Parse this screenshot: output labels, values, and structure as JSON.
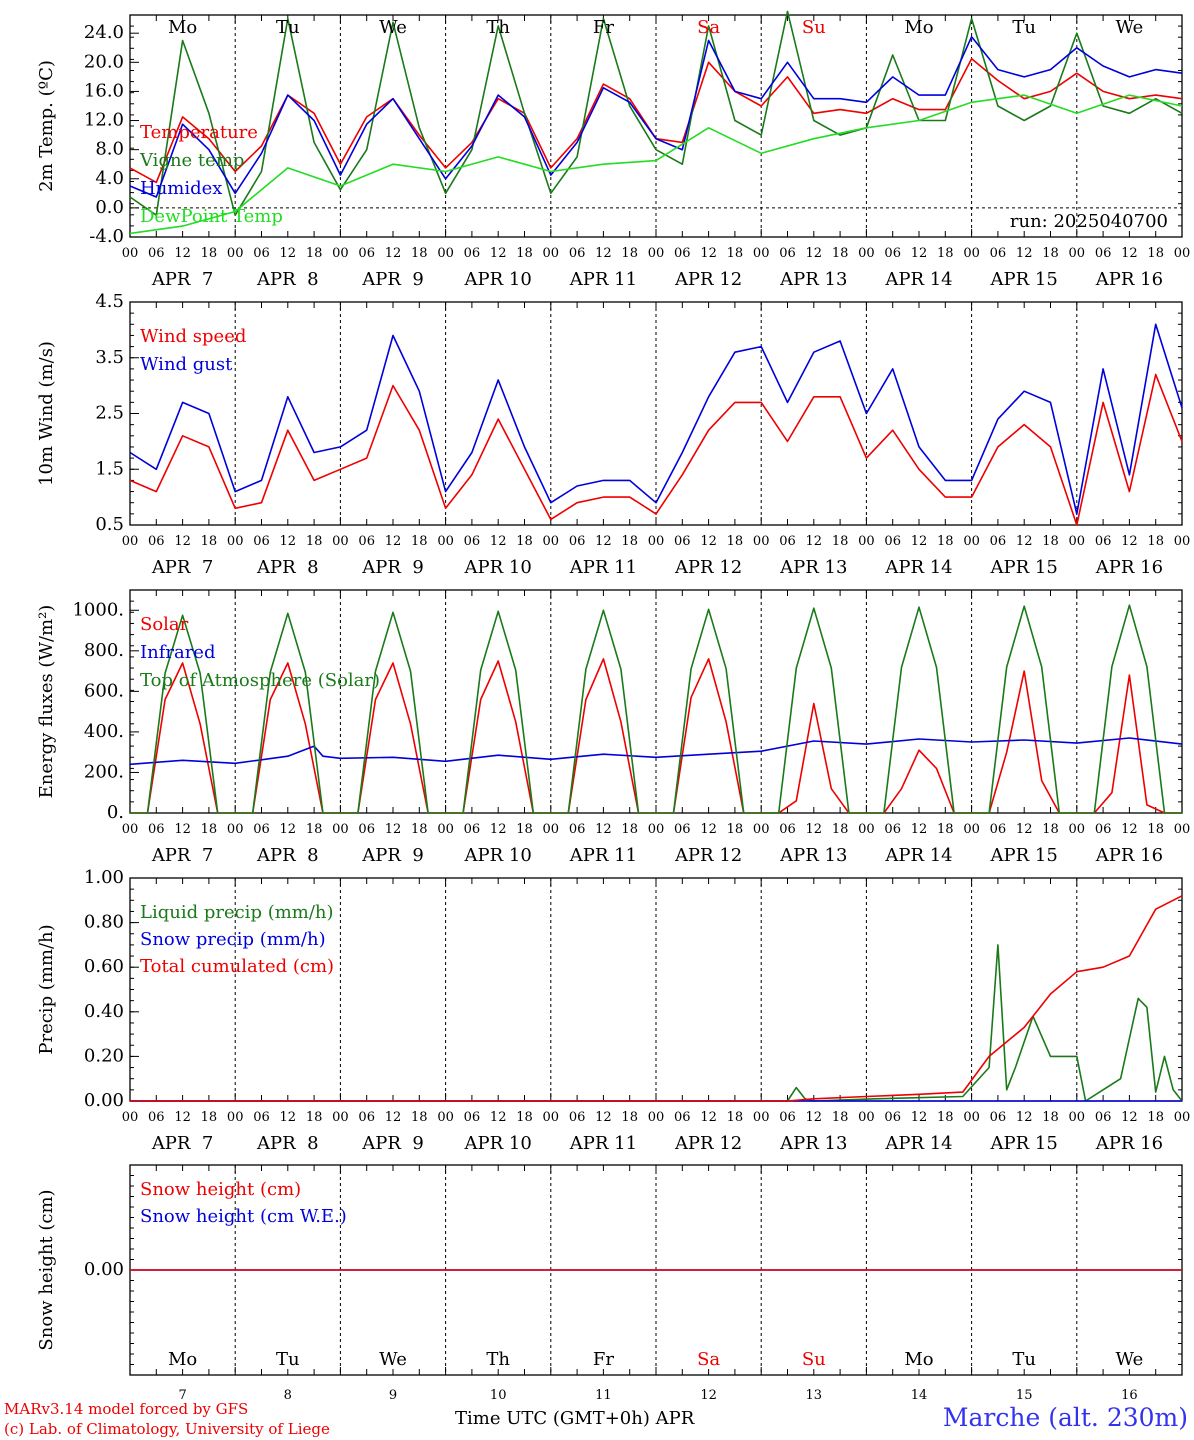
{
  "footer": {
    "model_line": "MARv3.14 model forced by GFS",
    "lab_line": "(c) Lab. of Climatology, University of Liege",
    "time_label": "Time UTC (GMT+0h) APR",
    "station": "Marche (alt. 230m)"
  },
  "colors": {
    "red": "#ee0000",
    "blue": "#0000dd",
    "dark_green": "#1a7a1a",
    "light_green": "#22dd22",
    "weekend": "#ee0000"
  },
  "days": [
    {
      "abbr": "Mo",
      "date": "APR  7",
      "num": "7",
      "weekend": false
    },
    {
      "abbr": "Tu",
      "date": "APR  8",
      "num": "8",
      "weekend": false
    },
    {
      "abbr": "We",
      "date": "APR  9",
      "num": "9",
      "weekend": false
    },
    {
      "abbr": "Th",
      "date": "APR 10",
      "num": "10",
      "weekend": false
    },
    {
      "abbr": "Fr",
      "date": "APR 11",
      "num": "11",
      "weekend": false
    },
    {
      "abbr": "Sa",
      "date": "APR 12",
      "num": "12",
      "weekend": true
    },
    {
      "abbr": "Su",
      "date": "APR 13",
      "num": "13",
      "weekend": true
    },
    {
      "abbr": "Mo",
      "date": "APR 14",
      "num": "14",
      "weekend": false
    },
    {
      "abbr": "Tu",
      "date": "APR 15",
      "num": "15",
      "weekend": false
    },
    {
      "abbr": "We",
      "date": "APR 16",
      "num": "16",
      "weekend": false
    }
  ],
  "hour_ticks": [
    "00",
    "06",
    "12",
    "18"
  ],
  "chart_data": [
    {
      "id": "temperature",
      "type": "line",
      "ylabel": "2m Temp. (ºC)",
      "ylim": [
        -4,
        26.5
      ],
      "yticks": [
        "-4.0",
        "0.0",
        "4.0",
        "8.0",
        "12.0",
        "16.0",
        "20.0",
        "24.0"
      ],
      "ytick_values": [
        -4,
        0,
        4,
        8,
        12,
        16,
        20,
        24
      ],
      "zero_line": 0,
      "annotation": "run: 2025040700",
      "x_unit": "hours since APR 7 00 UTC",
      "series": [
        {
          "name": "Temperature",
          "color": "red",
          "x": [
            0,
            6,
            12,
            18,
            24,
            30,
            36,
            42,
            48,
            54,
            60,
            66,
            72,
            78,
            84,
            90,
            96,
            102,
            108,
            114,
            120,
            126,
            132,
            138,
            144,
            150,
            156,
            162,
            168,
            174,
            180,
            186,
            192,
            198,
            204,
            210,
            216,
            222,
            228,
            234,
            240
          ],
          "y": [
            5.5,
            3.5,
            12.5,
            9.5,
            5,
            8.5,
            15.5,
            13,
            6,
            12.5,
            15,
            10,
            5.5,
            9,
            15,
            13,
            5.5,
            9.5,
            17,
            15,
            9.5,
            9,
            20,
            16,
            14,
            18,
            13,
            13.5,
            13,
            15,
            13.5,
            13.5,
            20.5,
            17.5,
            15,
            16,
            18.5,
            16,
            15,
            15.5,
            15
          ]
        },
        {
          "name": "Vigne temp",
          "color": "dark_green",
          "x": [
            0,
            6,
            12,
            18,
            24,
            30,
            36,
            42,
            48,
            54,
            60,
            66,
            72,
            78,
            84,
            90,
            96,
            102,
            108,
            114,
            120,
            126,
            132,
            138,
            144,
            150,
            156,
            162,
            168,
            174,
            180,
            186,
            192,
            198,
            204,
            210,
            216,
            222,
            228,
            234,
            240
          ],
          "y": [
            1.5,
            -1,
            23,
            13,
            -1,
            5,
            26,
            9,
            2.5,
            8,
            25.5,
            11,
            2,
            8,
            25,
            13,
            2,
            7,
            26,
            14,
            8,
            6,
            25,
            12,
            10,
            27,
            12,
            10,
            11,
            21,
            12,
            12,
            26,
            14,
            12,
            14,
            24,
            14,
            13,
            15,
            13
          ]
        },
        {
          "name": "Humidex",
          "color": "blue",
          "x": [
            0,
            6,
            12,
            18,
            24,
            30,
            36,
            42,
            48,
            54,
            60,
            66,
            72,
            78,
            84,
            90,
            96,
            102,
            108,
            114,
            120,
            126,
            132,
            138,
            144,
            150,
            156,
            162,
            168,
            174,
            180,
            186,
            192,
            198,
            204,
            210,
            216,
            222,
            228,
            234,
            240
          ],
          "y": [
            3,
            1.5,
            11.5,
            8,
            2,
            7.5,
            15.5,
            12,
            4.5,
            11.5,
            15,
            9.5,
            4,
            8.5,
            15.5,
            12.5,
            4.5,
            9,
            16.5,
            14.5,
            9.5,
            8,
            23,
            16,
            15,
            20,
            15,
            15,
            14.5,
            18,
            15.5,
            15.5,
            23.5,
            19,
            18,
            19,
            22,
            19.5,
            18,
            19,
            18.5
          ]
        },
        {
          "name": "DewPoint Temp",
          "color": "light_green",
          "x": [
            0,
            12,
            24,
            36,
            48,
            60,
            72,
            84,
            96,
            108,
            120,
            132,
            144,
            156,
            168,
            180,
            192,
            204,
            216,
            228,
            240
          ],
          "y": [
            -3.5,
            -2.5,
            -0.5,
            5.5,
            3,
            6,
            5,
            7,
            5,
            6,
            6.5,
            11,
            7.5,
            9.5,
            11,
            12,
            14.5,
            15.5,
            13,
            15.5,
            14
          ]
        }
      ]
    },
    {
      "id": "wind",
      "type": "line",
      "ylabel": "10m Wind (m/s)",
      "ylim": [
        0.5,
        4.5
      ],
      "yticks": [
        "0.5",
        "1.5",
        "2.5",
        "3.5",
        "4.5"
      ],
      "ytick_values": [
        0.5,
        1.5,
        2.5,
        3.5,
        4.5
      ],
      "x_unit": "hours since APR 7 00 UTC",
      "series": [
        {
          "name": "Wind speed",
          "color": "red",
          "x": [
            0,
            6,
            12,
            18,
            24,
            30,
            36,
            42,
            48,
            54,
            60,
            66,
            72,
            78,
            84,
            90,
            96,
            102,
            108,
            114,
            120,
            126,
            132,
            138,
            144,
            150,
            156,
            162,
            168,
            174,
            180,
            186,
            192,
            198,
            204,
            210,
            216,
            222,
            228,
            234,
            240
          ],
          "y": [
            1.3,
            1.1,
            2.1,
            1.9,
            0.8,
            0.9,
            2.2,
            1.3,
            1.5,
            1.7,
            3,
            2.2,
            0.8,
            1.4,
            2.4,
            1.5,
            0.6,
            0.9,
            1,
            1,
            0.7,
            1.4,
            2.2,
            2.7,
            2.7,
            2,
            2.8,
            2.8,
            1.7,
            2.2,
            1.5,
            1,
            1,
            1.9,
            2.3,
            1.9,
            0.5,
            2.7,
            1.1,
            3.2,
            2
          ]
        },
        {
          "name": "Wind gust",
          "color": "blue",
          "x": [
            0,
            6,
            12,
            18,
            24,
            30,
            36,
            42,
            48,
            54,
            60,
            66,
            72,
            78,
            84,
            90,
            96,
            102,
            108,
            114,
            120,
            126,
            132,
            138,
            144,
            150,
            156,
            162,
            168,
            174,
            180,
            186,
            192,
            198,
            204,
            210,
            216,
            222,
            228,
            234,
            240
          ],
          "y": [
            1.8,
            1.5,
            2.7,
            2.5,
            1.1,
            1.3,
            2.8,
            1.8,
            1.9,
            2.2,
            3.9,
            2.9,
            1.1,
            1.8,
            3.1,
            1.9,
            0.9,
            1.2,
            1.3,
            1.3,
            0.9,
            1.8,
            2.8,
            3.6,
            3.7,
            2.7,
            3.6,
            3.8,
            2.5,
            3.3,
            1.9,
            1.3,
            1.3,
            2.4,
            2.9,
            2.7,
            0.7,
            3.3,
            1.4,
            4.1,
            2.6
          ]
        }
      ]
    },
    {
      "id": "energy",
      "type": "line",
      "ylabel": "Energy fluxes (W/m²)",
      "ylim": [
        0,
        1100
      ],
      "yticks": [
        "0.",
        "200.",
        "400.",
        "600.",
        "800.",
        "1000."
      ],
      "ytick_values": [
        0,
        200,
        400,
        600,
        800,
        1000
      ],
      "x_unit": "hours since APR 7 00 UTC",
      "series": [
        {
          "name": "Solar",
          "color": "red",
          "x": [
            0,
            4,
            8,
            12,
            16,
            20,
            24,
            28,
            32,
            36,
            40,
            44,
            48,
            52,
            56,
            60,
            64,
            68,
            72,
            76,
            80,
            84,
            88,
            92,
            96,
            100,
            104,
            108,
            112,
            116,
            120,
            124,
            128,
            132,
            136,
            140,
            144,
            148,
            152,
            156,
            160,
            164,
            168,
            172,
            176,
            180,
            184,
            188,
            192,
            196,
            200,
            204,
            208,
            212,
            216,
            220,
            224,
            228,
            232,
            236,
            240
          ],
          "y": [
            0,
            0,
            560,
            740,
            440,
            0,
            0,
            0,
            560,
            740,
            440,
            0,
            0,
            0,
            560,
            740,
            440,
            0,
            0,
            0,
            560,
            750,
            450,
            0,
            0,
            0,
            560,
            760,
            450,
            0,
            0,
            0,
            570,
            760,
            450,
            0,
            0,
            0,
            60,
            540,
            120,
            0,
            0,
            0,
            120,
            310,
            220,
            0,
            0,
            0,
            300,
            700,
            160,
            0,
            0,
            0,
            100,
            680,
            40,
            0,
            0
          ]
        },
        {
          "name": "Infrared",
          "color": "blue",
          "x": [
            0,
            12,
            24,
            36,
            42,
            44,
            48,
            60,
            72,
            84,
            96,
            108,
            120,
            132,
            144,
            156,
            168,
            180,
            192,
            204,
            216,
            228,
            240
          ],
          "y": [
            240,
            260,
            245,
            280,
            330,
            280,
            270,
            275,
            255,
            285,
            265,
            290,
            275,
            290,
            305,
            355,
            340,
            365,
            350,
            360,
            345,
            370,
            340
          ]
        },
        {
          "name": "Top of Atmosphere (Solar)",
          "color": "dark_green",
          "x": [
            0,
            4,
            8,
            12,
            16,
            20,
            24,
            28,
            32,
            36,
            40,
            44,
            48,
            52,
            56,
            60,
            64,
            68,
            72,
            76,
            80,
            84,
            88,
            92,
            96,
            100,
            104,
            108,
            112,
            116,
            120,
            124,
            128,
            132,
            136,
            140,
            144,
            148,
            152,
            156,
            160,
            164,
            168,
            172,
            176,
            180,
            184,
            188,
            192,
            196,
            200,
            204,
            208,
            212,
            216,
            220,
            224,
            228,
            232,
            236,
            240
          ],
          "y": [
            0,
            0,
            690,
            975,
            690,
            0,
            0,
            0,
            695,
            985,
            695,
            0,
            0,
            0,
            700,
            990,
            700,
            0,
            0,
            0,
            705,
            995,
            705,
            0,
            0,
            0,
            710,
            1000,
            710,
            0,
            0,
            0,
            712,
            1005,
            712,
            0,
            0,
            0,
            715,
            1010,
            715,
            0,
            0,
            0,
            718,
            1015,
            718,
            0,
            0,
            0,
            720,
            1020,
            720,
            0,
            0,
            0,
            722,
            1025,
            722,
            0,
            0
          ]
        }
      ]
    },
    {
      "id": "precip",
      "type": "line",
      "ylabel": "Precip (mm/h)",
      "ylim": [
        0,
        1
      ],
      "yticks": [
        "0.00",
        "0.20",
        "0.40",
        "0.60",
        "0.80",
        "1.00"
      ],
      "ytick_values": [
        0,
        0.2,
        0.4,
        0.6,
        0.8,
        1.0
      ],
      "x_unit": "hours since APR 7 00 UTC",
      "series": [
        {
          "name": "Liquid precip (mm/h)",
          "color": "dark_green",
          "x": [
            0,
            150,
            152,
            154,
            156,
            170,
            190,
            196,
            198,
            200,
            202,
            206,
            210,
            216,
            218,
            222,
            226,
            230,
            232,
            234,
            236,
            238,
            240
          ],
          "y": [
            0,
            0,
            0.06,
            0.01,
            0,
            0.01,
            0.02,
            0.15,
            0.7,
            0.05,
            0.15,
            0.38,
            0.2,
            0.2,
            0,
            0.05,
            0.1,
            0.46,
            0.42,
            0.04,
            0.2,
            0.05,
            0
          ]
        },
        {
          "name": "Snow precip (mm/h)",
          "color": "blue",
          "x": [
            0,
            240
          ],
          "y": [
            0,
            0
          ]
        },
        {
          "name": "Total cumulated (cm)",
          "color": "red",
          "x": [
            0,
            150,
            156,
            168,
            180,
            190,
            196,
            204,
            210,
            216,
            222,
            228,
            234,
            240
          ],
          "y": [
            0,
            0,
            0.01,
            0.02,
            0.03,
            0.04,
            0.2,
            0.33,
            0.48,
            0.58,
            0.6,
            0.65,
            0.86,
            0.92
          ]
        }
      ]
    },
    {
      "id": "snow",
      "type": "line",
      "ylabel": "Snow height (cm)",
      "ylim": [
        -1,
        1
      ],
      "yticks": [
        "0.00"
      ],
      "ytick_values": [
        0
      ],
      "x_unit": "hours since APR 7 00 UTC",
      "series": [
        {
          "name": "Snow height (cm)",
          "color": "red",
          "x": [
            0,
            240
          ],
          "y": [
            0,
            0
          ]
        },
        {
          "name": "Snow height (cm W.E.)",
          "color": "blue",
          "x": [
            0,
            240
          ],
          "y": [
            0,
            0
          ]
        }
      ]
    }
  ]
}
